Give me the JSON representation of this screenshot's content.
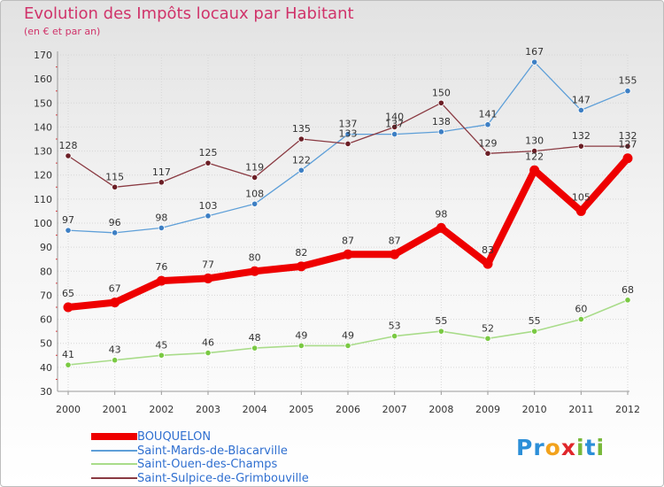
{
  "title": "Evolution des Impôts locaux par Habitant",
  "subtitle": "(en € et par an)",
  "logo": {
    "text": "Proxiti",
    "letters": [
      {
        "ch": "P",
        "color": "#2c8fd8"
      },
      {
        "ch": "r",
        "color": "#2c8fd8"
      },
      {
        "ch": "o",
        "color": "#f2a21c"
      },
      {
        "ch": "x",
        "color": "#e0262b"
      },
      {
        "ch": "i",
        "color": "#78b83a"
      },
      {
        "ch": "t",
        "color": "#2c8fd8"
      },
      {
        "ch": "i",
        "color": "#78b83a"
      }
    ]
  },
  "chart_data": {
    "type": "line",
    "title": "Evolution des Impôts locaux par Habitant",
    "ylabel": "(en € et par an)",
    "xlabel": "",
    "ylim": [
      30,
      170
    ],
    "yticks": [
      30,
      40,
      50,
      60,
      70,
      80,
      90,
      100,
      110,
      120,
      130,
      140,
      150,
      160,
      170
    ],
    "grid": true,
    "legend": "bottom-left",
    "categories": [
      "2000",
      "2001",
      "2002",
      "2003",
      "2004",
      "2005",
      "2006",
      "2007",
      "2008",
      "2009",
      "2010",
      "2011",
      "2012"
    ],
    "series": [
      {
        "name": "Saint-Mards-de-Blacarville",
        "color": "#5e9fd8",
        "marker": "#3d7fc4",
        "width": 1.3,
        "values": [
          97,
          96,
          98,
          103,
          108,
          122,
          137,
          137,
          138,
          141,
          167,
          147,
          155
        ]
      },
      {
        "name": "Saint-Ouen-des-Champs",
        "color": "#a9dc8a",
        "marker": "#7ac943",
        "width": 1.6,
        "values": [
          41,
          43,
          45,
          46,
          48,
          49,
          49,
          53,
          55,
          52,
          55,
          60,
          68
        ]
      },
      {
        "name": "Saint-Sulpice-de-Grimbouville",
        "color": "#8a3a42",
        "marker": "#6b1f26",
        "width": 1.3,
        "values": [
          128,
          115,
          117,
          125,
          119,
          135,
          133,
          140,
          150,
          129,
          130,
          132,
          132
        ]
      },
      {
        "name": "BOUQUELON",
        "color": "#ee0000",
        "marker": "#ee0000",
        "width": 8,
        "values": [
          65,
          67,
          76,
          77,
          80,
          82,
          87,
          87,
          98,
          83,
          122,
          105,
          127
        ]
      }
    ],
    "legend_order": [
      "BOUQUELON",
      "Saint-Mards-de-Blacarville",
      "Saint-Ouen-des-Champs",
      "Saint-Sulpice-de-Grimbouville"
    ]
  }
}
